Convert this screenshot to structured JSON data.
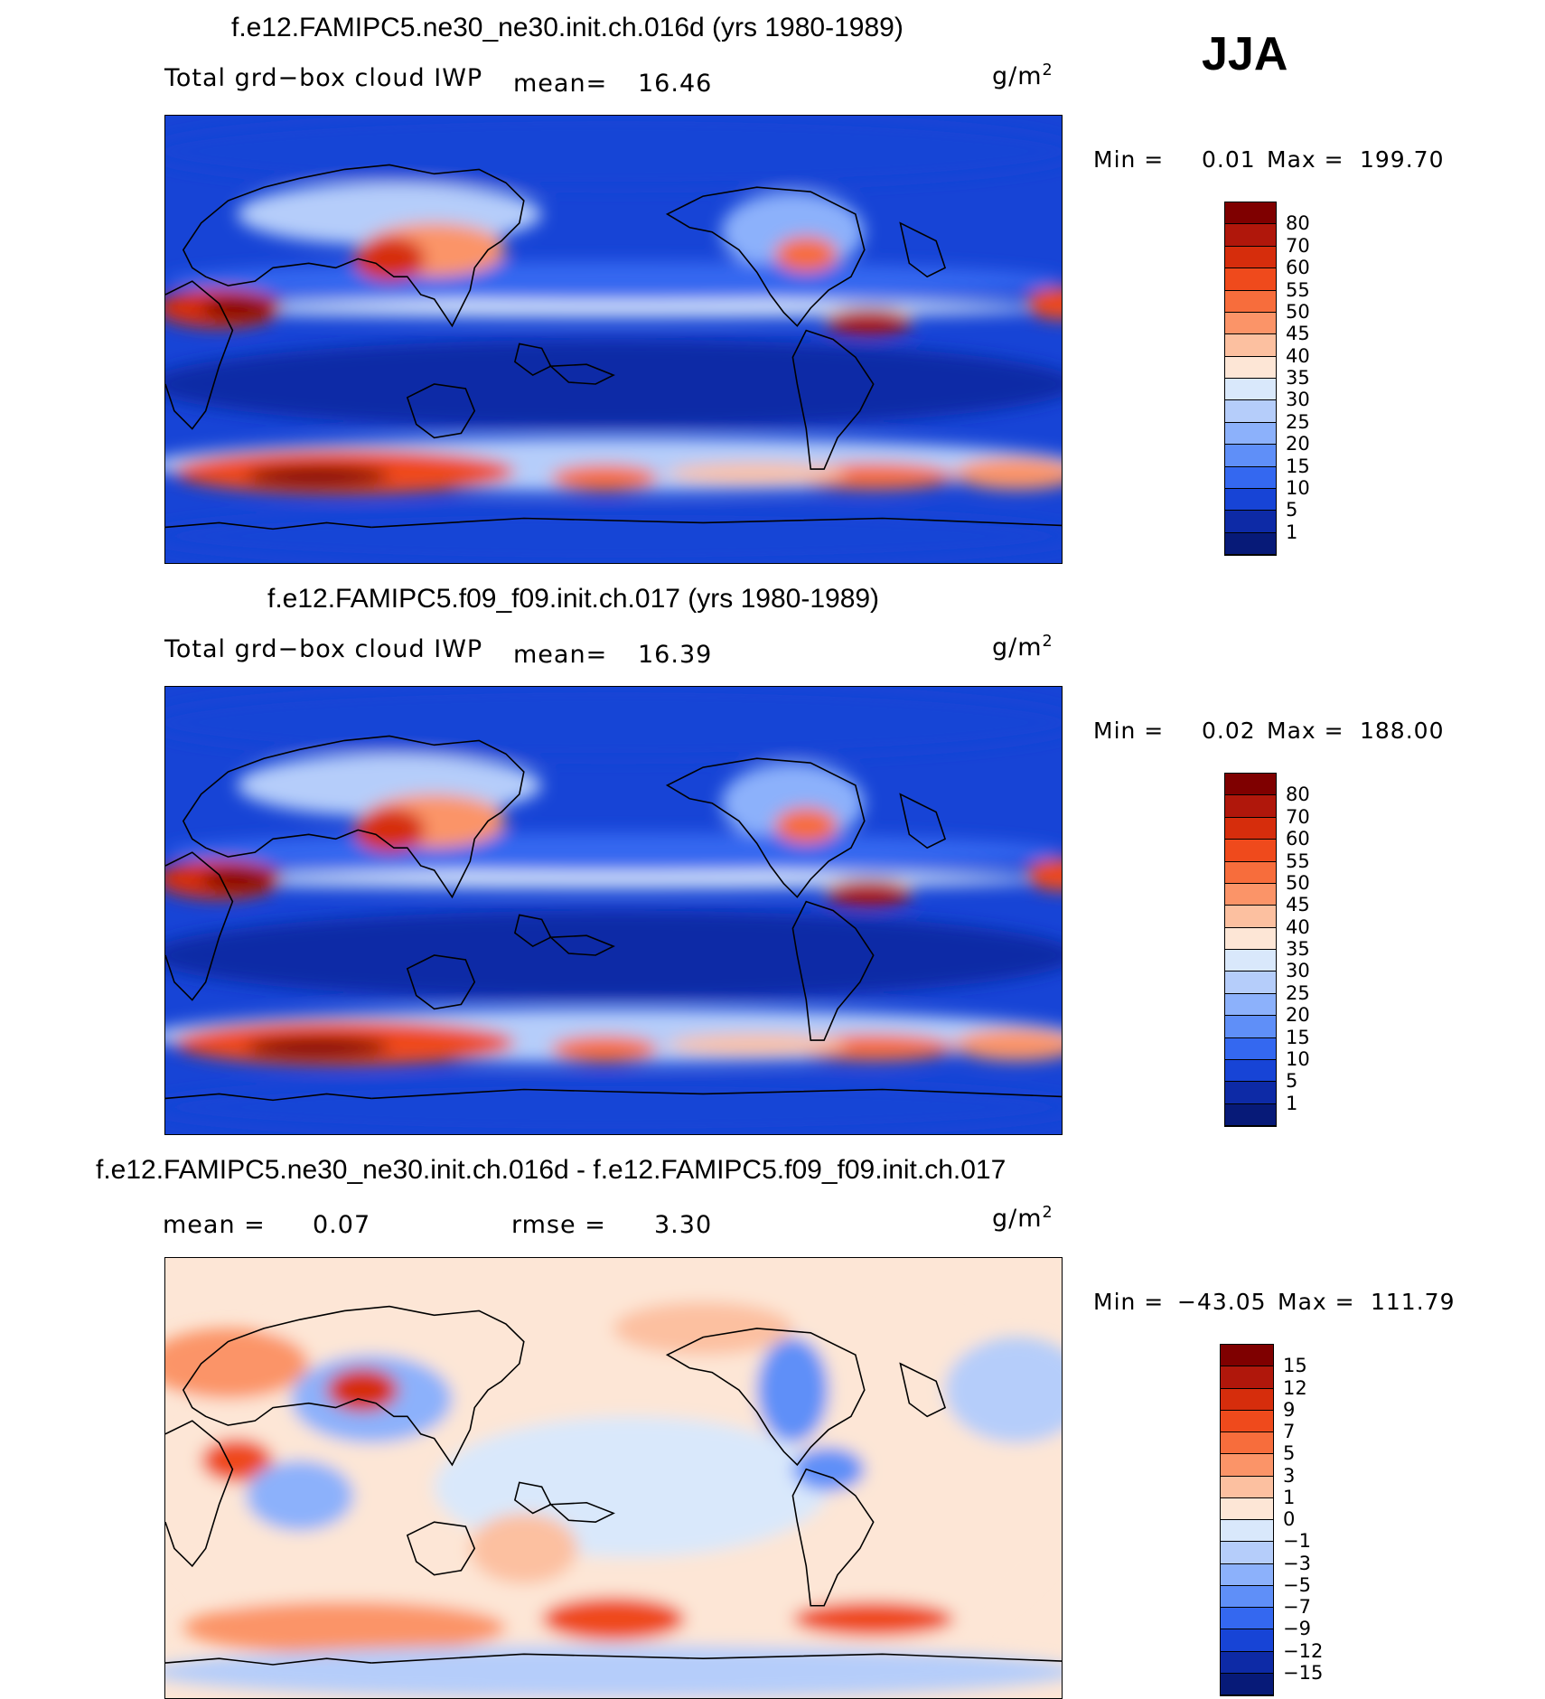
{
  "season": "JJA",
  "units": "g/m",
  "units_sup": "2",
  "panels": [
    {
      "title": "f.e12.FAMIPC5.ne30_ne30.init.ch.016d (yrs 1980-1989)",
      "variable": "Total grd−box cloud IWP",
      "mean_label": "mean=",
      "mean_value": "16.46",
      "min_label": "Min  =",
      "min_value": "0.01",
      "max_label": "Max  =",
      "max_value": "199.70"
    },
    {
      "title": "f.e12.FAMIPC5.f09_f09.init.ch.017 (yrs 1980-1989)",
      "variable": "Total grd−box cloud IWP",
      "mean_label": "mean=",
      "mean_value": "16.39",
      "min_label": "Min  =",
      "min_value": "0.02",
      "max_label": "Max  =",
      "max_value": "188.00"
    },
    {
      "title": "f.e12.FAMIPC5.ne30_ne30.init.ch.016d - f.e12.FAMIPC5.f09_f09.init.ch.017",
      "mean_label": "mean  =",
      "mean_value": "0.07",
      "rmse_label": "rmse  =",
      "rmse_value": "3.30",
      "min_label": "Min  =",
      "min_value": "−43.05",
      "max_label": "Max  =",
      "max_value": "111.79"
    }
  ],
  "colorbar_field": {
    "labels": [
      "80",
      "70",
      "60",
      "55",
      "50",
      "45",
      "40",
      "35",
      "30",
      "25",
      "20",
      "15",
      "10",
      "5",
      "1"
    ],
    "colors": [
      "#7f0000",
      "#b0170b",
      "#d62d0c",
      "#ef4a1c",
      "#f76d3c",
      "#fb9468",
      "#fcc0a0",
      "#fde6d6",
      "#d9e8fb",
      "#b5cdfa",
      "#8cb1fb",
      "#5f8ff8",
      "#3468f0",
      "#1744d6",
      "#0d2aa6",
      "#071a78"
    ]
  },
  "colorbar_diff": {
    "labels": [
      "15",
      "12",
      "9",
      "7",
      "5",
      "3",
      "1",
      "0",
      "−1",
      "−3",
      "−5",
      "−7",
      "−9",
      "−12",
      "−15"
    ],
    "colors": [
      "#7f0000",
      "#b0170b",
      "#d62d0c",
      "#ef4a1c",
      "#f76d3c",
      "#fb9468",
      "#fcc0a0",
      "#fde6d6",
      "#d9e8fb",
      "#b5cdfa",
      "#8cb1fb",
      "#5f8ff8",
      "#3468f0",
      "#1744d6",
      "#0d2aa6",
      "#071a78"
    ]
  },
  "chart_data": [
    {
      "type": "heatmap",
      "title": "f.e12.FAMIPC5.ne30_ne30.init.ch.016d (yrs 1980-1989)",
      "season": "JJA",
      "variable": "Total grd-box cloud IWP",
      "units": "g/m2",
      "mean": 16.46,
      "min": 0.01,
      "max": 199.7,
      "contour_levels": [
        1,
        5,
        10,
        15,
        20,
        25,
        30,
        35,
        40,
        45,
        50,
        55,
        60,
        70,
        80
      ]
    },
    {
      "type": "heatmap",
      "title": "f.e12.FAMIPC5.f09_f09.init.ch.017 (yrs 1980-1989)",
      "season": "JJA",
      "variable": "Total grd-box cloud IWP",
      "units": "g/m2",
      "mean": 16.39,
      "min": 0.02,
      "max": 188.0,
      "contour_levels": [
        1,
        5,
        10,
        15,
        20,
        25,
        30,
        35,
        40,
        45,
        50,
        55,
        60,
        70,
        80
      ]
    },
    {
      "type": "heatmap",
      "title": "f.e12.FAMIPC5.ne30_ne30.init.ch.016d - f.e12.FAMIPC5.f09_f09.init.ch.017",
      "season": "JJA",
      "units": "g/m2",
      "mean": 0.07,
      "rmse": 3.3,
      "min": -43.05,
      "max": 111.79,
      "contour_levels": [
        -15,
        -12,
        -9,
        -7,
        -5,
        -3,
        -1,
        0,
        1,
        3,
        5,
        7,
        9,
        12,
        15
      ]
    }
  ]
}
